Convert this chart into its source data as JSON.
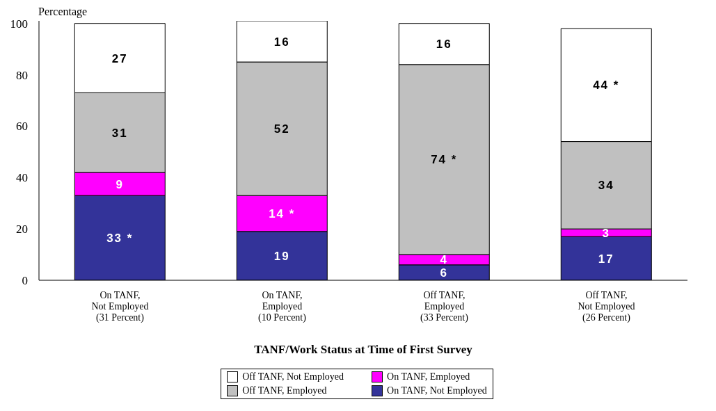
{
  "chart_data": {
    "type": "bar",
    "stacked": true,
    "xlabel": "TANF/Work Status at Time of First Survey",
    "ylabel": "Percentage",
    "categories": [
      "On TANF,\nNot Employed\n(31 Percent)",
      "On TANF,\nEmployed\n(10 Percent)",
      "Off TANF,\nEmployed\n(33 Percent)",
      "Off TANF,\nNot Employed\n(26 Percent)"
    ],
    "series": [
      {
        "name": "On TANF, Not Employed",
        "color": "#333399",
        "values": [
          33,
          19,
          6,
          17
        ],
        "value_labels": [
          "33 *",
          "19",
          "6",
          "17"
        ]
      },
      {
        "name": "On TANF, Employed",
        "color": "#ff00ff",
        "values": [
          9,
          14,
          4,
          3
        ],
        "value_labels": [
          "9",
          "14 *",
          "4",
          "3"
        ]
      },
      {
        "name": "Off TANF, Employed",
        "color": "#c0c0c0",
        "values": [
          31,
          52,
          74,
          34
        ],
        "value_labels": [
          "31",
          "52",
          "74 *",
          "34"
        ]
      },
      {
        "name": "Off TANF, Not Employed",
        "color": "#ffffff",
        "values": [
          27,
          16,
          16,
          44
        ],
        "value_labels": [
          "27",
          "16",
          "16",
          "44 *"
        ]
      }
    ],
    "ylim": [
      0,
      101
    ],
    "yticks": [
      0,
      20,
      40,
      60,
      80,
      100
    ],
    "grid": false,
    "legend": "bottom"
  }
}
